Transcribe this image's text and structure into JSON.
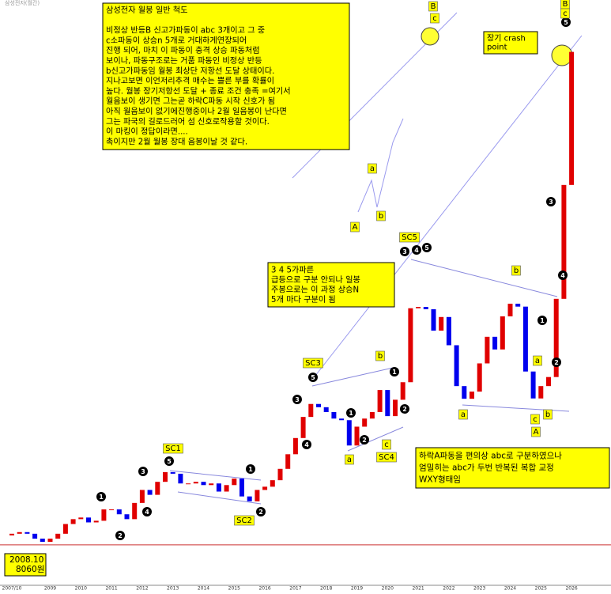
{
  "chart_data": {
    "type": "candlestick",
    "corner_label": "삼성전자(월간)",
    "categories": [
      "2007/10",
      null,
      null,
      null,
      null,
      "2009",
      null,
      null,
      null,
      "2010",
      null,
      null,
      null,
      "2011",
      null,
      null,
      null,
      "2012",
      null,
      null,
      null,
      "2013",
      null,
      null,
      null,
      "2014",
      null,
      null,
      null,
      "2015",
      null,
      null,
      null,
      "2016",
      null,
      null,
      null,
      "2017",
      null,
      null,
      null,
      "2018",
      null,
      null,
      null,
      "2019",
      null,
      null,
      null,
      "2020",
      null,
      null,
      null,
      "2021",
      null,
      null,
      null,
      "2022",
      null,
      null,
      null,
      "2023",
      null,
      null,
      null,
      "2024",
      null,
      null,
      null,
      "2025",
      null,
      null,
      null,
      "2026"
    ],
    "open": [
      11000,
      11500,
      12000,
      11500,
      10000,
      9000,
      10000,
      11500,
      14500,
      16000,
      16500,
      15000,
      15500,
      19000,
      19000,
      17500,
      16000,
      21000,
      25000,
      23500,
      27500,
      30500,
      30000,
      27000,
      27000,
      27500,
      26500,
      27000,
      24500,
      26500,
      28500,
      23000,
      21500,
      25000,
      26000,
      28000,
      31500,
      36000,
      41000,
      47500,
      51500,
      50500,
      49000,
      47000,
      46500,
      38700,
      44500,
      47000,
      49000,
      55800,
      47750,
      52800,
      58200,
      81000,
      81400,
      80700,
      74100,
      78300,
      69600,
      57000,
      53100,
      55300,
      64000,
      72200,
      68300,
      78500,
      82400,
      81500,
      61500,
      53200,
      57000,
      59800,
      83900,
      119000
    ],
    "close": [
      11500,
      12000,
      11500,
      10000,
      9000,
      10000,
      11500,
      14500,
      16000,
      16500,
      15000,
      15500,
      19000,
      19000,
      17500,
      16000,
      21000,
      25000,
      23500,
      27500,
      30500,
      30000,
      27000,
      27000,
      27500,
      26500,
      27000,
      24500,
      26500,
      28500,
      23000,
      21500,
      25000,
      26000,
      28000,
      31500,
      36000,
      41000,
      47500,
      51500,
      50500,
      49000,
      47000,
      46500,
      38700,
      44500,
      47000,
      49000,
      55800,
      47750,
      52800,
      58200,
      81000,
      81400,
      80700,
      74100,
      78300,
      69600,
      57000,
      53100,
      55300,
      64000,
      72200,
      68300,
      78500,
      82400,
      81500,
      61500,
      53200,
      57000,
      59800,
      83900,
      119000,
      160000
    ],
    "up_color": "#e00000",
    "down_color": "#0000ee",
    "ylim": [
      0,
      176000
    ],
    "reference_line": 8060,
    "reference_label": [
      "2008.10",
      "8060원"
    ],
    "main_note": [
      "삼성전자 월봉 일반 척도",
      "비정상 반등B 신고가파동이 abc 3개이고 그 중",
      "c소파동이 상승n 5개로 거대하게연장되어",
      "진행 되어, 마치 이 파동이 충격 상승 파동처럼",
      "보이나, 파동구조로는 거품 파동인 비정상 반등",
      "b신고가파동임 월봉 최상단 저항선 도달 상태이다.",
      "지나고보면 이언저리추격 매수는 쁠른 부를 확률이",
      "높다. 월봉 장기저항선 도달 + 종료 조건 충족 =여기서",
      "월음보이 생기면 그는곧 하락C파동 시작 신호가 됨",
      "아직 월음보이 없기에진행중이나 2월 일음봉이 난다면",
      "그는 파국의 길로드러어 섬 신호로작용할 것이다.",
      "이 마킹이 정답이라면....",
      "촉이지만 2월 월봉 장대 음봉이날 것 같다."
    ],
    "mid_note": [
      "3 4 5가파른",
      "급등으로 구분 안되나 일봉",
      "주봉으로는 이 과정 상승N",
      "5개 마다 구분이 됨"
    ],
    "bottom_note": [
      "하락A파동을 편의상 abc로 구분하였으나",
      "엄밀히는 abc가 두번 반복된 복합 교정",
      "WXY형태임"
    ],
    "crash_note": [
      "장기 crash",
      "point"
    ],
    "wave_numbers": [
      "1",
      "2",
      "3",
      "4",
      "5",
      "1",
      "2",
      "3",
      "4",
      "5",
      "1",
      "2",
      "1",
      "2",
      "3",
      "4",
      "5",
      "1",
      "2",
      "3",
      "4",
      "5"
    ],
    "wave_boxes": [
      "SC1",
      "SC2",
      "SC3",
      "SC4",
      "SC5",
      "a",
      "b",
      "c",
      "a",
      "b",
      "a",
      "b",
      "c",
      "A",
      "a",
      "b",
      "A",
      "B",
      "c",
      "B",
      "c"
    ]
  }
}
